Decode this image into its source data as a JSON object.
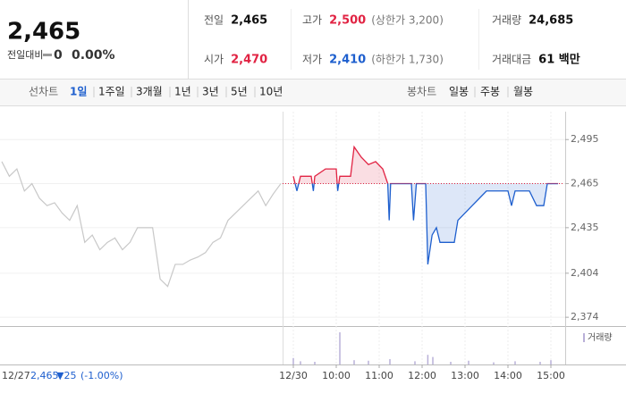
{
  "header": {
    "price": "2,465",
    "change_label": "전일대비",
    "change": "0",
    "change_rate": "0.00%"
  },
  "stats": [
    [
      {
        "label": "전일",
        "value": "2,465"
      },
      {
        "label": "고가",
        "value": "2,500",
        "note": "(상한가 3,200)"
      },
      {
        "label": "거래량",
        "value": "24,685"
      }
    ],
    [
      {
        "label": "시가",
        "value": "2,470"
      },
      {
        "label": "저가",
        "value": "2,410",
        "note": "(하한가 1,730)"
      },
      {
        "label": "거래대금",
        "value": "61 백만"
      }
    ]
  ],
  "tabs": {
    "line_label": "선차트",
    "line_periods": [
      "1일",
      "1주일",
      "3개월",
      "1년",
      "3년",
      "5년",
      "10년"
    ],
    "candle_label": "봉차트",
    "candle_periods": [
      "일봉",
      "주봉",
      "월봉"
    ]
  },
  "chart_data": {
    "type": "line",
    "x": [
      "09:00",
      "09:05",
      "09:10",
      "09:25",
      "09:28",
      "09:30",
      "09:45",
      "10:00",
      "10:02",
      "10:05",
      "10:20",
      "10:25",
      "10:35",
      "10:45",
      "10:55",
      "11:05",
      "11:12",
      "11:14",
      "11:16",
      "11:45",
      "11:48",
      "11:52",
      "12:05",
      "12:08",
      "12:14",
      "12:20",
      "12:25",
      "12:45",
      "12:50",
      "13:00",
      "13:10",
      "13:20",
      "13:30",
      "14:00",
      "14:05",
      "14:10",
      "14:30",
      "14:40",
      "14:50",
      "14:55",
      "15:10"
    ],
    "series": [
      {
        "color": "#e12343",
        "color_below": "#1e5fce",
        "values": [
          2470,
          2460,
          2470,
          2470,
          2460,
          2470,
          2475,
          2475,
          2460,
          2470,
          2470,
          2490,
          2483,
          2478,
          2480,
          2475,
          2465,
          2440,
          2465,
          2465,
          2440,
          2465,
          2465,
          2410,
          2430,
          2435,
          2425,
          2425,
          2440,
          2445,
          2450,
          2455,
          2460,
          2460,
          2450,
          2460,
          2460,
          2450,
          2450,
          2465,
          2465
        ]
      }
    ],
    "reference_line": 2465,
    "xlim": [
      "08:45",
      "15:20"
    ],
    "xticks": [
      {
        "value": "09:00",
        "label": "12/30"
      },
      "10:00",
      "11:00",
      "12:00",
      "13:00",
      "14:00",
      "15:00"
    ],
    "ylim": [
      2368,
      2514
    ],
    "yticks": [
      {
        "value": 2374,
        "label": "2,374"
      },
      {
        "value": 2404,
        "label": "2,404"
      },
      {
        "value": 2435,
        "label": "2,435"
      },
      {
        "value": 2465,
        "label": "2,465"
      },
      {
        "value": 2495,
        "label": "2,495"
      }
    ],
    "volume": {
      "label": "거래량",
      "color": "#b9b0d8",
      "ylim": [
        0,
        3000
      ],
      "x": [
        "09:00",
        "09:10",
        "09:30",
        "10:05",
        "10:25",
        "10:45",
        "11:15",
        "11:50",
        "12:08",
        "12:15",
        "12:40",
        "13:05",
        "13:40",
        "14:10",
        "14:45",
        "15:00"
      ],
      "values": [
        600,
        300,
        250,
        3000,
        400,
        350,
        500,
        300,
        900,
        700,
        250,
        350,
        200,
        300,
        250,
        400
      ]
    },
    "previous_day": {
      "date": "12/27",
      "close": "2,465",
      "change": "▼25",
      "rate": "(-1.00%)",
      "color": "#c8c8c8",
      "values": [
        2480,
        2470,
        2475,
        2460,
        2465,
        2455,
        2450,
        2452,
        2445,
        2440,
        2450,
        2425,
        2430,
        2420,
        2425,
        2428,
        2420,
        2425,
        2435,
        2435,
        2435,
        2400,
        2395,
        2410,
        2410,
        2413,
        2415,
        2418,
        2425,
        2428,
        2440,
        2445,
        2450,
        2455,
        2460,
        2450,
        2458,
        2465
      ]
    }
  }
}
